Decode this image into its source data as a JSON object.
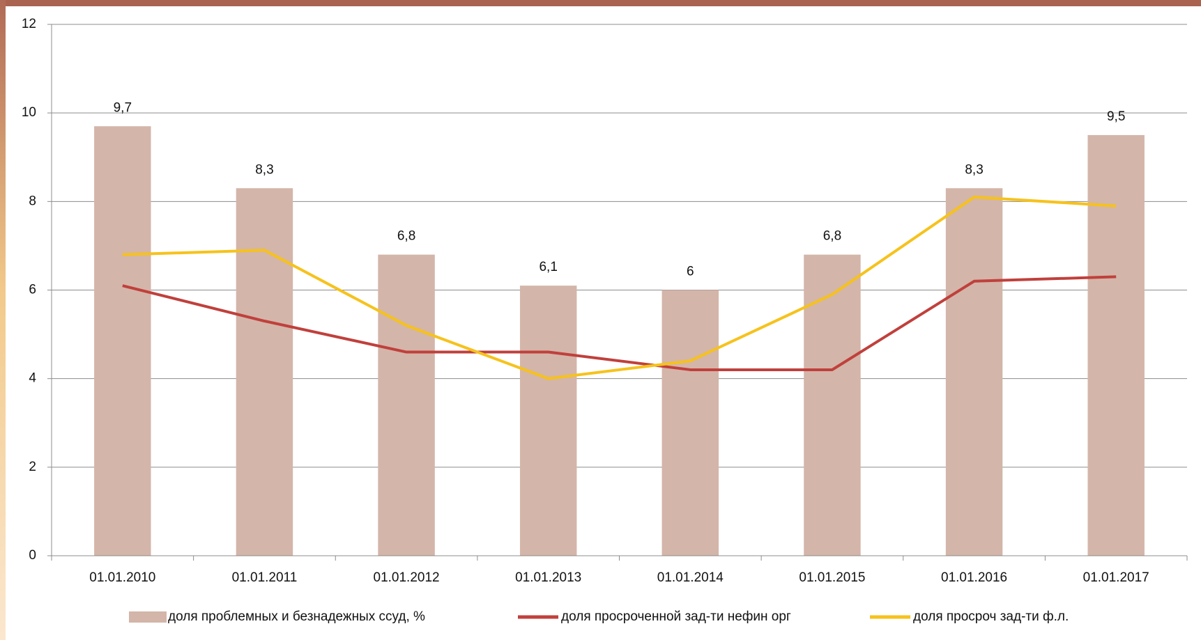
{
  "chart_data": {
    "type": "bar",
    "categories": [
      "01.01.2010",
      "01.01.2011",
      "01.01.2012",
      "01.01.2013",
      "01.01.2014",
      "01.01.2015",
      "01.01.2016",
      "01.01.2017"
    ],
    "series": [
      {
        "name": "доля проблемных и безнадежных ссуд, %",
        "type": "bar",
        "color": "#d4b5a9",
        "values": [
          9.7,
          8.3,
          6.8,
          6.1,
          6,
          6.8,
          8.3,
          9.5
        ],
        "value_labels": [
          "9,7",
          "8,3",
          "6,8",
          "6,1",
          "6",
          "6,8",
          "8,3",
          "9,5"
        ]
      },
      {
        "name": "доля просроченной зад-ти нефин орг",
        "type": "line",
        "color": "#c0403c",
        "values": [
          6.1,
          5.3,
          4.6,
          4.6,
          4.2,
          4.2,
          6.2,
          6.3
        ]
      },
      {
        "name": "доля просроч зад-ти ф.л.",
        "type": "line",
        "color": "#f6c21c",
        "values": [
          6.8,
          6.9,
          5.2,
          4.0,
          4.4,
          5.9,
          8.1,
          7.9
        ]
      }
    ],
    "ylim": [
      0,
      12
    ],
    "yticks": [
      0,
      2,
      4,
      6,
      8,
      10,
      12
    ],
    "grid": true,
    "legend": "bottom"
  }
}
